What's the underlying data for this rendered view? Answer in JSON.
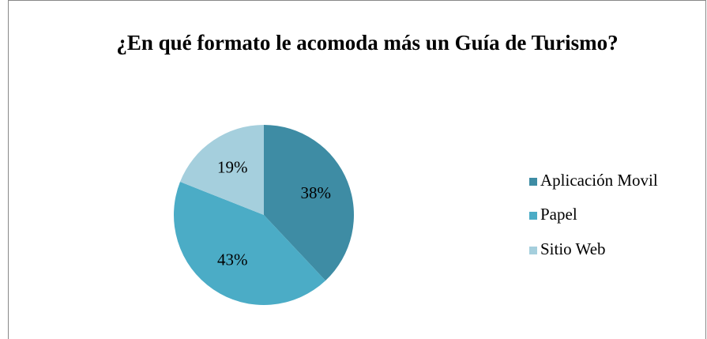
{
  "chart_data": {
    "type": "pie",
    "title": "¿En qué formato le acomoda más un Guía de Turismo?",
    "categories": [
      "Aplicación Movil",
      "Papel",
      "Sitio Web"
    ],
    "values": [
      38,
      43,
      19
    ],
    "value_labels": [
      "38%",
      "43%",
      "19%"
    ],
    "colors": [
      "#3e8ca4",
      "#4bacc6",
      "#a5cfdd"
    ],
    "legend": "right"
  }
}
